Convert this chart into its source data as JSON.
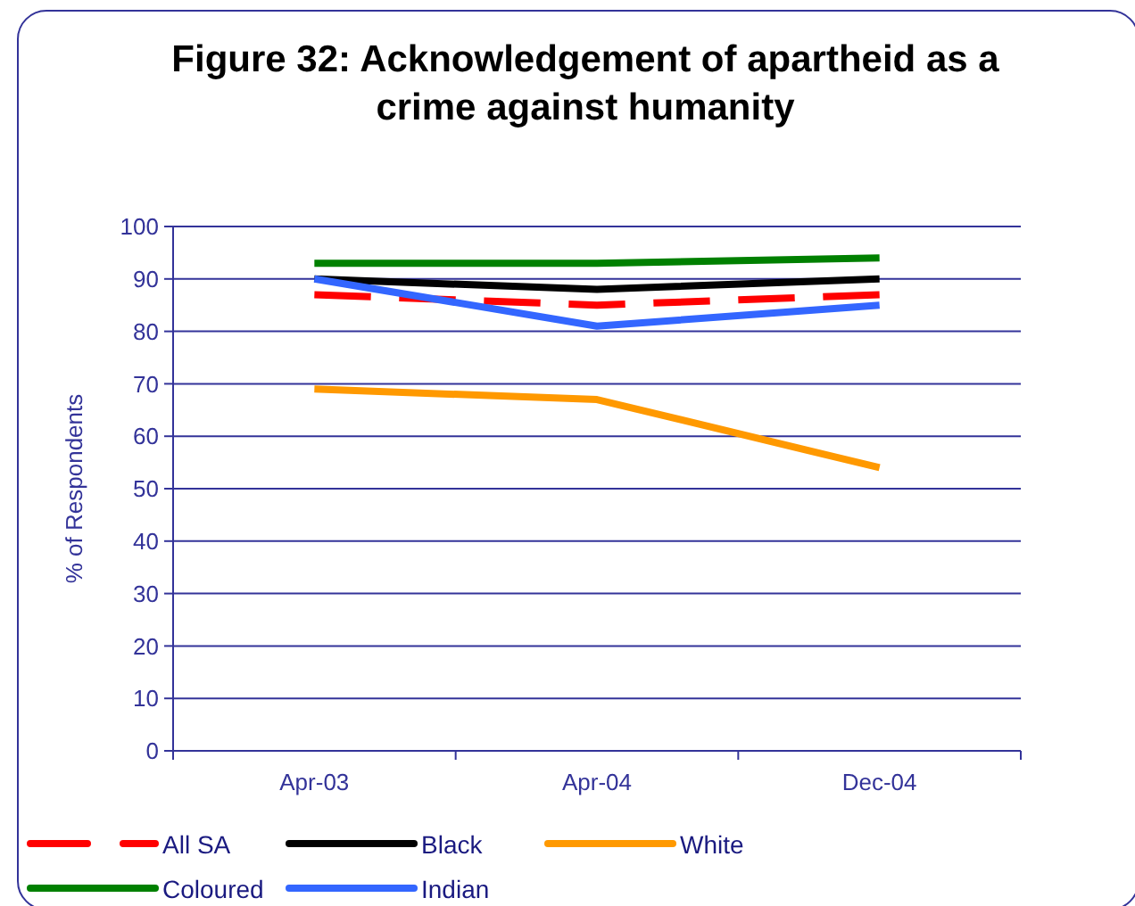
{
  "chart_data": {
    "type": "line",
    "title": "Figure 32: Acknowledgement of apartheid as a crime against humanity",
    "ylabel": "% of Respondents",
    "categories": [
      "Apr-03",
      "Apr-04",
      "Dec-04"
    ],
    "series": [
      {
        "name": "All SA",
        "color": "#ff0000",
        "values": [
          87,
          85,
          87
        ],
        "line_style": "dashed"
      },
      {
        "name": "Black",
        "color": "#000000",
        "values": [
          90,
          88,
          90
        ]
      },
      {
        "name": "White",
        "color": "#ff9900",
        "values": [
          69,
          67,
          54
        ]
      },
      {
        "name": "Coloured",
        "color": "#008000",
        "values": [
          93,
          93,
          94
        ]
      },
      {
        "name": "Indian",
        "color": "#3366ff",
        "values": [
          90,
          81,
          85
        ]
      }
    ],
    "ylim": [
      0,
      100
    ],
    "yticks": [
      0,
      10,
      20,
      30,
      40,
      50,
      60,
      70,
      80,
      90,
      100
    ],
    "grid": "y",
    "legend": "bottom",
    "line_style": "solid",
    "marker": "none"
  }
}
